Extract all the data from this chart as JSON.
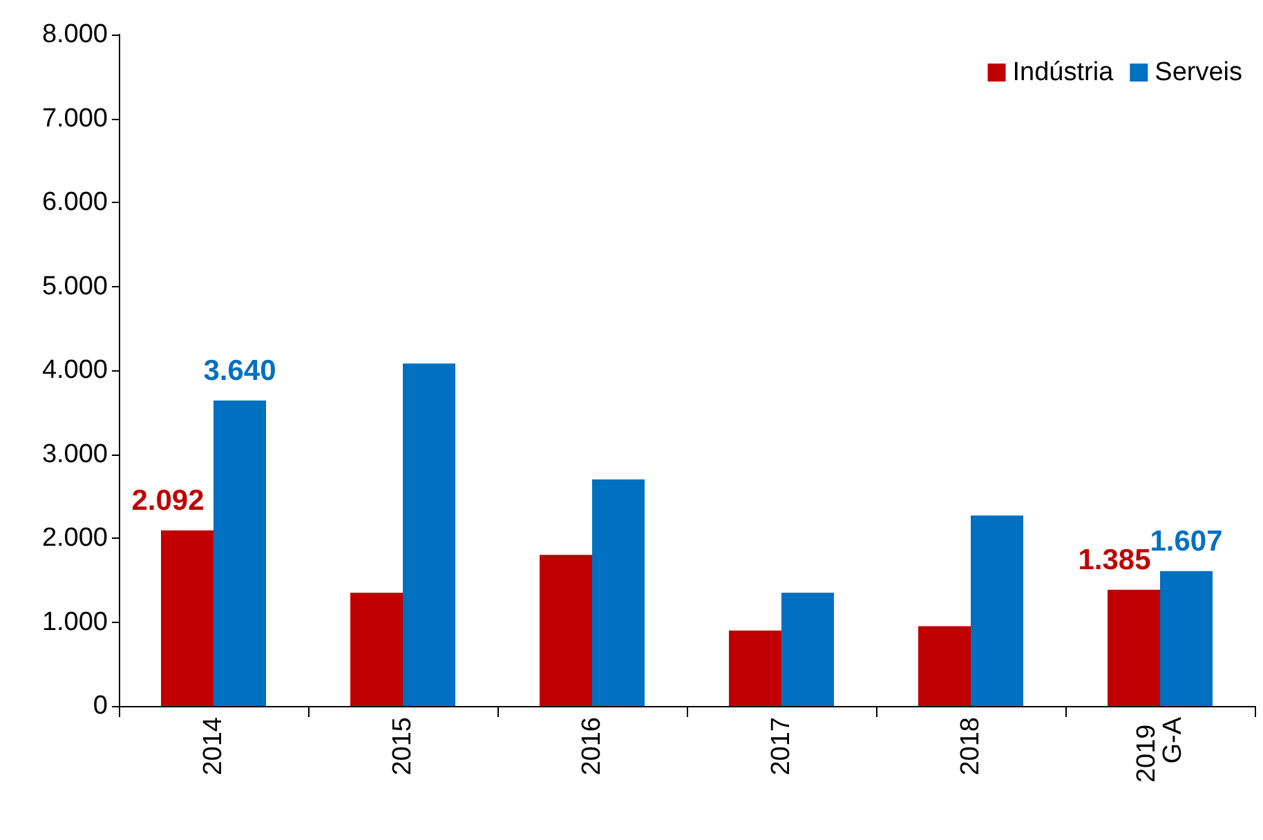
{
  "chart_data": {
    "type": "bar",
    "categories": [
      "2014",
      "2015",
      "2016",
      "2017",
      "2018",
      "2019 G-A"
    ],
    "series": [
      {
        "name": "Indústria",
        "color": "#c00000",
        "values": [
          2092,
          1350,
          1800,
          900,
          950,
          1385
        ],
        "value_labels": [
          "2.092",
          null,
          null,
          null,
          null,
          "1.385"
        ]
      },
      {
        "name": "Serveis",
        "color": "#0070c0",
        "values": [
          3640,
          4080,
          2700,
          1350,
          2270,
          1607
        ],
        "value_labels": [
          "3.640",
          null,
          null,
          null,
          null,
          "1.607"
        ]
      }
    ],
    "ylim": [
      0,
      8000
    ],
    "yticks": [
      {
        "value": 0,
        "label": "0"
      },
      {
        "value": 1000,
        "label": "1.000"
      },
      {
        "value": 2000,
        "label": "2.000"
      },
      {
        "value": 3000,
        "label": "3.000"
      },
      {
        "value": 4000,
        "label": "4.000"
      },
      {
        "value": 5000,
        "label": "5.000"
      },
      {
        "value": 6000,
        "label": "6.000"
      },
      {
        "value": 7000,
        "label": "7.000"
      },
      {
        "value": 8000,
        "label": "8.000"
      }
    ],
    "grid": false,
    "legend": "top right"
  }
}
